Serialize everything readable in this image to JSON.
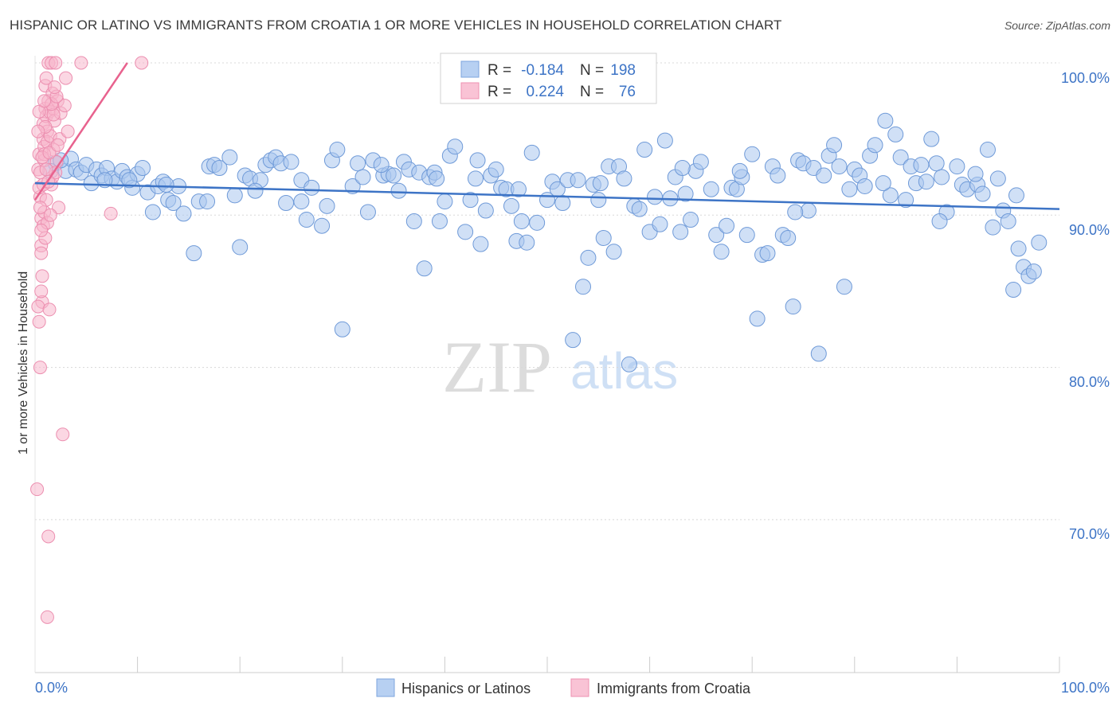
{
  "title": "HISPANIC OR LATINO VS IMMIGRANTS FROM CROATIA 1 OR MORE VEHICLES IN HOUSEHOLD CORRELATION CHART",
  "source": "Source: ZipAtlas.com",
  "watermark": {
    "zip": "ZIP",
    "atlas": "atlas"
  },
  "colors": {
    "blue": "#3d74c6",
    "blue_fill": "#a9c6ee",
    "pink": "#e8628e",
    "pink_fill": "#f7b7cc",
    "grid": "#d8d8d8"
  },
  "legend": {
    "r_label": "R =",
    "n_label": "N =",
    "rows": [
      {
        "r": "-0.184",
        "n": "198"
      },
      {
        "r": "0.224",
        "n": "76"
      }
    ]
  },
  "bottom_legend": [
    "Hispanics or Latinos",
    "Immigrants from Croatia"
  ],
  "chart_data": {
    "type": "scatter",
    "title": "HISPANIC OR LATINO VS IMMIGRANTS FROM CROATIA 1 OR MORE VEHICLES IN HOUSEHOLD CORRELATION CHART",
    "xlabel": "",
    "ylabel": "1 or more Vehicles in Household",
    "x_ticks": [
      "0.0%",
      "100.0%"
    ],
    "y_ticks": [
      "100.0%",
      "90.0%",
      "80.0%",
      "70.0%"
    ],
    "xlim": [
      0,
      100
    ],
    "ylim": [
      62,
      101.5
    ],
    "grid": true,
    "legend_position": "top-center",
    "series": [
      {
        "name": "Hispanics or Latinos",
        "r": -0.184,
        "n": 198,
        "trend": [
          [
            0,
            92.1
          ],
          [
            100,
            90.4
          ]
        ],
        "points": [
          [
            2,
            93.4
          ],
          [
            3,
            92.9
          ],
          [
            3.5,
            93.7
          ],
          [
            4,
            93.0
          ],
          [
            4.5,
            92.8
          ],
          [
            5,
            93.3
          ],
          [
            5.5,
            92.1
          ],
          [
            6,
            93.0
          ],
          [
            6.5,
            92.6
          ],
          [
            7,
            93.1
          ],
          [
            7.5,
            92.4
          ],
          [
            8,
            92.2
          ],
          [
            8.5,
            92.9
          ],
          [
            9,
            92.5
          ],
          [
            9.5,
            91.8
          ],
          [
            10,
            92.7
          ],
          [
            10.5,
            93.1
          ],
          [
            11,
            91.5
          ],
          [
            11.5,
            90.2
          ],
          [
            12,
            91.9
          ],
          [
            12.5,
            92.2
          ],
          [
            13,
            91.0
          ],
          [
            13.5,
            90.8
          ],
          [
            14,
            91.9
          ],
          [
            14.5,
            90.1
          ],
          [
            15.5,
            87.5
          ],
          [
            16,
            90.9
          ],
          [
            17,
            93.2
          ],
          [
            17.5,
            93.3
          ],
          [
            18,
            93.1
          ],
          [
            19,
            93.8
          ],
          [
            19.5,
            91.3
          ],
          [
            20,
            87.9
          ],
          [
            20.5,
            92.6
          ],
          [
            21,
            92.4
          ],
          [
            22,
            92.3
          ],
          [
            22.5,
            93.3
          ],
          [
            23,
            93.6
          ],
          [
            23.5,
            93.8
          ],
          [
            24,
            93.4
          ],
          [
            24.5,
            90.8
          ],
          [
            25,
            93.5
          ],
          [
            26,
            92.3
          ],
          [
            26.5,
            89.7
          ],
          [
            27,
            91.8
          ],
          [
            28,
            89.3
          ],
          [
            28.5,
            90.6
          ],
          [
            29,
            93.6
          ],
          [
            29.5,
            94.3
          ],
          [
            30,
            82.5
          ],
          [
            31,
            91.9
          ],
          [
            31.5,
            93.4
          ],
          [
            32,
            92.5
          ],
          [
            32.5,
            90.2
          ],
          [
            33,
            93.6
          ],
          [
            34,
            92.6
          ],
          [
            34.5,
            92.7
          ],
          [
            35,
            92.6
          ],
          [
            35.5,
            91.6
          ],
          [
            36,
            93.5
          ],
          [
            36.5,
            93.0
          ],
          [
            37,
            89.6
          ],
          [
            37.5,
            92.8
          ],
          [
            38,
            86.5
          ],
          [
            38.5,
            92.5
          ],
          [
            39,
            92.8
          ],
          [
            39.5,
            89.6
          ],
          [
            40,
            90.9
          ],
          [
            40.5,
            93.9
          ],
          [
            41,
            94.5
          ],
          [
            42,
            88.9
          ],
          [
            42.5,
            91.0
          ],
          [
            43,
            92.4
          ],
          [
            43.5,
            88.1
          ],
          [
            44,
            90.3
          ],
          [
            44.5,
            92.6
          ],
          [
            45,
            93.0
          ],
          [
            45.5,
            91.8
          ],
          [
            46,
            91.7
          ],
          [
            46.5,
            90.6
          ],
          [
            47,
            88.3
          ],
          [
            47.5,
            89.6
          ],
          [
            48,
            88.2
          ],
          [
            48.5,
            94.1
          ],
          [
            49,
            89.5
          ],
          [
            50,
            91.0
          ],
          [
            50.5,
            92.2
          ],
          [
            51,
            91.7
          ],
          [
            51.5,
            90.8
          ],
          [
            52,
            92.3
          ],
          [
            52.5,
            81.8
          ],
          [
            53,
            92.3
          ],
          [
            53.5,
            85.3
          ],
          [
            54,
            87.2
          ],
          [
            54.5,
            92.0
          ],
          [
            55,
            91.0
          ],
          [
            55.5,
            88.5
          ],
          [
            56,
            93.2
          ],
          [
            56.5,
            87.6
          ],
          [
            57,
            93.2
          ],
          [
            57.5,
            92.4
          ],
          [
            58,
            80.2
          ],
          [
            58.5,
            90.6
          ],
          [
            59,
            90.4
          ],
          [
            59.5,
            94.3
          ],
          [
            60,
            88.9
          ],
          [
            60.5,
            91.2
          ],
          [
            61,
            89.4
          ],
          [
            61.5,
            94.9
          ],
          [
            62,
            91.1
          ],
          [
            62.5,
            92.5
          ],
          [
            63,
            88.9
          ],
          [
            63.5,
            91.4
          ],
          [
            64,
            89.7
          ],
          [
            64.5,
            92.9
          ],
          [
            65,
            93.5
          ],
          [
            66,
            91.7
          ],
          [
            66.5,
            88.7
          ],
          [
            67,
            87.6
          ],
          [
            67.5,
            89.3
          ],
          [
            68,
            91.8
          ],
          [
            68.5,
            91.7
          ],
          [
            69,
            92.5
          ],
          [
            69.5,
            88.7
          ],
          [
            70,
            94.0
          ],
          [
            70.5,
            83.2
          ],
          [
            71,
            87.4
          ],
          [
            71.5,
            87.5
          ],
          [
            72,
            93.2
          ],
          [
            72.5,
            92.6
          ],
          [
            73,
            88.7
          ],
          [
            73.5,
            88.5
          ],
          [
            74,
            84.0
          ],
          [
            74.5,
            93.6
          ],
          [
            75,
            93.4
          ],
          [
            75.5,
            90.3
          ],
          [
            76,
            93.1
          ],
          [
            76.5,
            80.9
          ],
          [
            77,
            92.6
          ],
          [
            77.5,
            93.9
          ],
          [
            78,
            94.6
          ],
          [
            78.5,
            93.2
          ],
          [
            79,
            85.3
          ],
          [
            79.5,
            91.7
          ],
          [
            80,
            93.0
          ],
          [
            80.5,
            92.6
          ],
          [
            81,
            91.9
          ],
          [
            81.5,
            93.9
          ],
          [
            82,
            94.6
          ],
          [
            83,
            96.2
          ],
          [
            83.5,
            91.3
          ],
          [
            84,
            95.3
          ],
          [
            84.5,
            93.8
          ],
          [
            85,
            91.0
          ],
          [
            85.5,
            93.2
          ],
          [
            86,
            92.1
          ],
          [
            86.5,
            93.3
          ],
          [
            87,
            92.2
          ],
          [
            87.5,
            95.0
          ],
          [
            88,
            93.4
          ],
          [
            88.5,
            92.5
          ],
          [
            89,
            90.2
          ],
          [
            90,
            93.2
          ],
          [
            90.5,
            92.0
          ],
          [
            91,
            91.7
          ],
          [
            92,
            92.0
          ],
          [
            92.5,
            91.4
          ],
          [
            93,
            94.3
          ],
          [
            94,
            92.4
          ],
          [
            94.5,
            90.3
          ],
          [
            95,
            89.6
          ],
          [
            95.5,
            85.1
          ],
          [
            96,
            87.8
          ],
          [
            96.5,
            86.6
          ],
          [
            97,
            86.0
          ],
          [
            97.5,
            86.3
          ],
          [
            98,
            88.2
          ],
          [
            95.8,
            91.3
          ],
          [
            93.5,
            89.2
          ],
          [
            1.5,
            92.9
          ],
          [
            2.5,
            93.6
          ],
          [
            6.8,
            92.3
          ],
          [
            9.2,
            92.3
          ],
          [
            12.8,
            92.0
          ],
          [
            16.8,
            90.9
          ],
          [
            21.5,
            91.6
          ],
          [
            26,
            90.9
          ],
          [
            33.8,
            93.3
          ],
          [
            39.2,
            92.4
          ],
          [
            43.2,
            93.6
          ],
          [
            47.2,
            91.7
          ],
          [
            55.2,
            92.1
          ],
          [
            63.2,
            93.1
          ],
          [
            68.8,
            92.9
          ],
          [
            74.2,
            90.2
          ],
          [
            82.8,
            92.1
          ],
          [
            88.3,
            89.6
          ],
          [
            91.8,
            92.7
          ]
        ]
      },
      {
        "name": "Immigrants from Croatia",
        "r": 0.224,
        "n": 76,
        "trend": [
          [
            0,
            91.0
          ],
          [
            9,
            100.0
          ]
        ],
        "points": [
          [
            0.3,
            93.0
          ],
          [
            0.4,
            94.0
          ],
          [
            0.5,
            92.8
          ],
          [
            0.5,
            91.2
          ],
          [
            0.6,
            89.8
          ],
          [
            0.6,
            88.0
          ],
          [
            0.7,
            86.0
          ],
          [
            0.7,
            84.3
          ],
          [
            0.8,
            96.0
          ],
          [
            0.8,
            95.0
          ],
          [
            0.9,
            94.5
          ],
          [
            0.9,
            93.6
          ],
          [
            1.0,
            97.0
          ],
          [
            1.0,
            98.5
          ],
          [
            1.1,
            99.0
          ],
          [
            1.1,
            96.5
          ],
          [
            1.2,
            95.5
          ],
          [
            1.2,
            94.8
          ],
          [
            1.3,
            100.0
          ],
          [
            1.3,
            97.5
          ],
          [
            1.4,
            96.8
          ],
          [
            1.5,
            95.2
          ],
          [
            1.6,
            100.0
          ],
          [
            1.7,
            98.0
          ],
          [
            1.8,
            97.0
          ],
          [
            1.9,
            96.2
          ],
          [
            2.0,
            100.0
          ],
          [
            2.1,
            93.5
          ],
          [
            2.2,
            97.5
          ],
          [
            2.3,
            90.5
          ],
          [
            2.4,
            95.0
          ],
          [
            2.5,
            96.7
          ],
          [
            2.7,
            75.6
          ],
          [
            2.9,
            97.2
          ],
          [
            3.0,
            99.0
          ],
          [
            3.2,
            95.5
          ],
          [
            0.2,
            72.0
          ],
          [
            0.3,
            84.0
          ],
          [
            0.4,
            83.0
          ],
          [
            0.5,
            80.0
          ],
          [
            0.6,
            87.5
          ],
          [
            0.6,
            85.0
          ],
          [
            0.8,
            89.3
          ],
          [
            0.9,
            90.2
          ],
          [
            1.0,
            88.5
          ],
          [
            1.1,
            91.0
          ],
          [
            1.2,
            89.5
          ],
          [
            1.3,
            68.9
          ],
          [
            1.2,
            63.6
          ],
          [
            1.4,
            83.8
          ],
          [
            1.5,
            90.0
          ],
          [
            1.6,
            92.0
          ],
          [
            1.7,
            92.5
          ],
          [
            1.8,
            94.3
          ],
          [
            2.0,
            92.8
          ],
          [
            4.5,
            100.0
          ],
          [
            7.4,
            90.1
          ],
          [
            10.4,
            100.0
          ],
          [
            0.9,
            94.0
          ],
          [
            0.7,
            93.8
          ],
          [
            1.0,
            95.8
          ],
          [
            1.4,
            94.1
          ],
          [
            1.8,
            96.6
          ],
          [
            2.2,
            94.6
          ],
          [
            0.4,
            91.8
          ],
          [
            0.5,
            90.5
          ],
          [
            0.6,
            89.0
          ],
          [
            0.8,
            92.0
          ],
          [
            1.1,
            93.0
          ],
          [
            1.3,
            92.2
          ],
          [
            1.6,
            97.3
          ],
          [
            2.1,
            97.8
          ],
          [
            1.9,
            98.4
          ],
          [
            0.3,
            95.5
          ],
          [
            0.4,
            96.8
          ],
          [
            0.9,
            97.5
          ]
        ]
      }
    ]
  }
}
